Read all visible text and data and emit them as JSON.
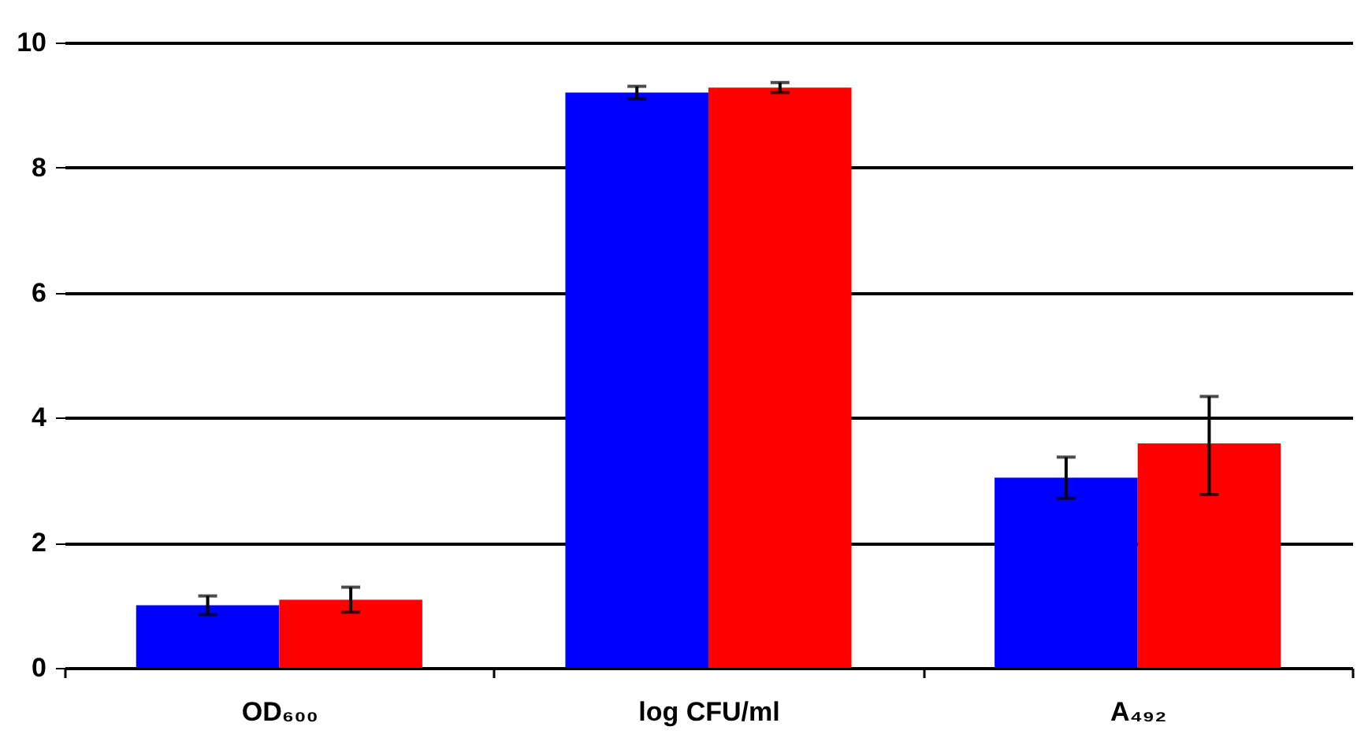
{
  "chart_data": {
    "type": "bar",
    "categories": [
      "OD₆₀₀",
      "log CFU/ml",
      "A₄₉₂"
    ],
    "series": [
      {
        "color": "#0000ff",
        "values": [
          1.0,
          9.2,
          3.04
        ],
        "errors": [
          0.15,
          0.1,
          0.33
        ]
      },
      {
        "color": "#ff0000",
        "values": [
          1.09,
          9.28,
          3.59
        ],
        "errors": [
          0.2,
          0.08,
          [
            2.77,
            4.34
          ]
        ]
      }
    ],
    "ylim": [
      0,
      10
    ],
    "yticks": [
      0,
      2,
      4,
      6,
      8,
      10
    ],
    "grid": "y",
    "legend": false
  }
}
